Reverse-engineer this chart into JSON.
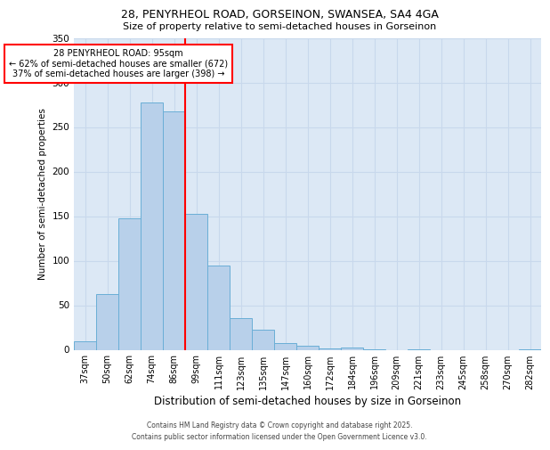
{
  "title1": "28, PENYRHEOL ROAD, GORSEINON, SWANSEA, SA4 4GA",
  "title2": "Size of property relative to semi-detached houses in Gorseinon",
  "xlabel": "Distribution of semi-detached houses by size in Gorseinon",
  "ylabel": "Number of semi-detached properties",
  "categories": [
    "37sqm",
    "50sqm",
    "62sqm",
    "74sqm",
    "86sqm",
    "99sqm",
    "111sqm",
    "123sqm",
    "135sqm",
    "147sqm",
    "160sqm",
    "172sqm",
    "184sqm",
    "196sqm",
    "209sqm",
    "221sqm",
    "233sqm",
    "245sqm",
    "258sqm",
    "270sqm",
    "282sqm"
  ],
  "values": [
    10,
    63,
    148,
    278,
    268,
    153,
    95,
    36,
    23,
    8,
    5,
    2,
    3,
    1,
    0,
    1,
    0,
    0,
    0,
    0,
    1
  ],
  "bar_color": "#b8d0ea",
  "bar_edge_color": "#6aaed6",
  "grid_color": "#c8d8ec",
  "background_color": "#dce8f5",
  "annotation_title": "28 PENYRHEOL ROAD: 95sqm",
  "annotation_line1": "← 62% of semi-detached houses are smaller (672)",
  "annotation_line2": "37% of semi-detached houses are larger (398) →",
  "footer1": "Contains HM Land Registry data © Crown copyright and database right 2025.",
  "footer2": "Contains public sector information licensed under the Open Government Licence v3.0.",
  "ylim": [
    0,
    350
  ],
  "yticks": [
    0,
    50,
    100,
    150,
    200,
    250,
    300,
    350
  ],
  "red_line_bin": 5
}
